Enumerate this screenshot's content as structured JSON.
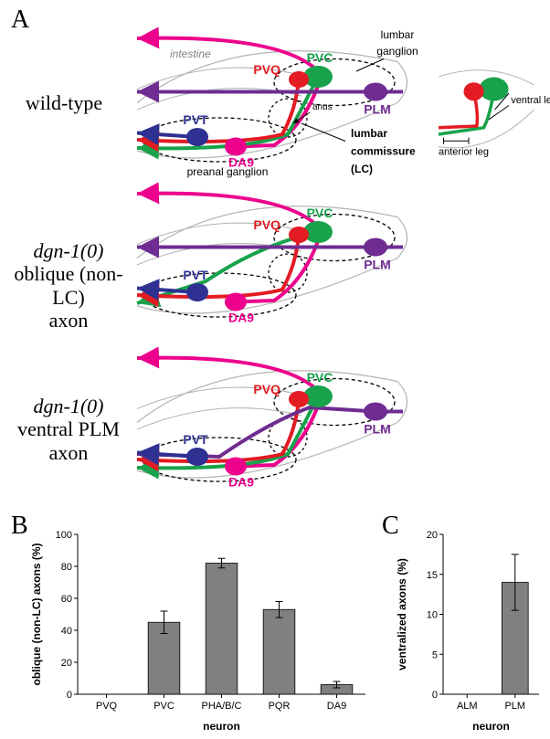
{
  "panelA": {
    "label": "A",
    "rows": [
      {
        "label_html": "wild-type"
      },
      {
        "label_html": "<span style=\"font-style:italic\">dgn-1(0)</span><br>oblique (non-LC)<br>axon"
      },
      {
        "label_html": "<span style=\"font-style:italic\">dgn-1(0)</span><br>ventral PLM axon"
      }
    ],
    "annotations": {
      "intestine": "intestine",
      "PVC": "PVC",
      "PVQ": "PVQ",
      "PLM": "PLM",
      "PVT": "PVT",
      "DA9": "DA9",
      "anus": "anus",
      "lumbar_ganglion": "lumbar ganglion",
      "preanal_ganglion": "preanal ganglion",
      "lumbar_commissure": "lumbar\ncommissure\n(LC)",
      "anterior_leg": "anterior leg",
      "ventral_leg": "ventral leg"
    },
    "colors": {
      "PVC": "#18a24b",
      "PVQ": "#e31b23",
      "PLM": "#6f2c91",
      "PVT": "#2e3192",
      "DA9": "#ec008c",
      "outline": "#b3b3b3",
      "dashedEllipse": "#000000",
      "text_black": "#000000"
    }
  },
  "panelB": {
    "label": "B",
    "type": "bar",
    "x_title": "neuron",
    "y_title": "oblique (non-LC) axons (%)",
    "categories": [
      "PVQ",
      "PVC",
      "PHA/B/C",
      "PQR",
      "DA9"
    ],
    "values": [
      0,
      45,
      82,
      53,
      6
    ],
    "errors": [
      0,
      7,
      3,
      5,
      2
    ],
    "bar_color": "#808080",
    "axis_color": "#000000",
    "ylim": [
      0,
      100
    ],
    "ytick_step": 20,
    "title_fontsize": 12,
    "tick_fontsize": 11
  },
  "panelC": {
    "label": "C",
    "type": "bar",
    "x_title": "neuron",
    "y_title": "ventralized axons (%)",
    "categories": [
      "ALM",
      "PLM"
    ],
    "values": [
      0,
      14
    ],
    "errors": [
      0,
      3.5
    ],
    "bar_color": "#808080",
    "axis_color": "#000000",
    "ylim": [
      0,
      20
    ],
    "ytick_step": 5,
    "title_fontsize": 12,
    "tick_fontsize": 11
  }
}
